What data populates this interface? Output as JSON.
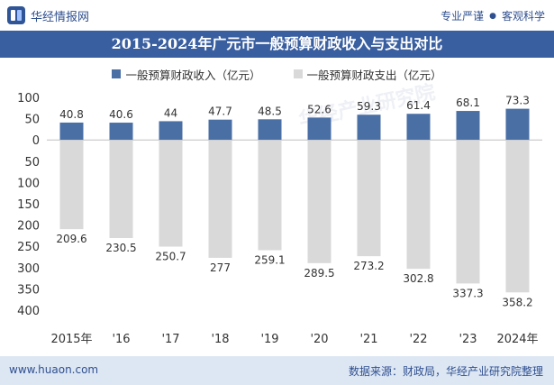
{
  "header": {
    "brand_name": "华经情报网",
    "tagline_left": "专业严谨",
    "tagline_dot": "●",
    "tagline_right": "客观科学"
  },
  "title": "2015-2024年广元市一般预算财政收入与支出对比",
  "watermark": "华经产业研究院",
  "footer": {
    "website": "www.huaon.com",
    "source": "数据来源：财政局，华经产业研究院整理"
  },
  "colors": {
    "income": "#4a6fa5",
    "expenditure": "#d9d9d9",
    "title_bg": "#3a5fa0",
    "footer_bg": "#dde7f4"
  },
  "chart_data": {
    "type": "bar",
    "title": "2015-2024年广元市一般预算财政收入与支出对比",
    "categories": [
      "2015年",
      "'16",
      "'17",
      "'18",
      "'19",
      "'20",
      "'21",
      "'22",
      "'23",
      "2024年"
    ],
    "series": [
      {
        "name": "一般预算财政收入（亿元）",
        "values": [
          40.8,
          40.6,
          44,
          47.7,
          48.5,
          52.6,
          59.3,
          61.4,
          68.1,
          73.3
        ],
        "labels": [
          "40.8",
          "40.6",
          "44",
          "47.7",
          "48.5",
          "52.6",
          "59.3",
          "61.4",
          "68.1",
          "73.3"
        ]
      },
      {
        "name": "一般预算财政支出（亿元）",
        "values": [
          -209.6,
          -230.5,
          -250.7,
          -277,
          -259.1,
          -289.5,
          -273.2,
          -302.8,
          -337.3,
          -358.2
        ],
        "labels": [
          "209.6",
          "230.5",
          "250.7",
          "277",
          "259.1",
          "289.5",
          "273.2",
          "302.8",
          "337.3",
          "358.2"
        ]
      }
    ],
    "ylim": [
      -400,
      100
    ],
    "yticks": [
      100,
      50,
      0,
      -50,
      -100,
      -150,
      -200,
      -250,
      -300,
      -350,
      -400
    ],
    "ytick_labels": [
      "100",
      "50",
      "0",
      "50",
      "100",
      "150",
      "200",
      "250",
      "300",
      "350",
      "400"
    ],
    "xlabel": "",
    "ylabel": "",
    "grid": false,
    "legend": "top-center"
  }
}
